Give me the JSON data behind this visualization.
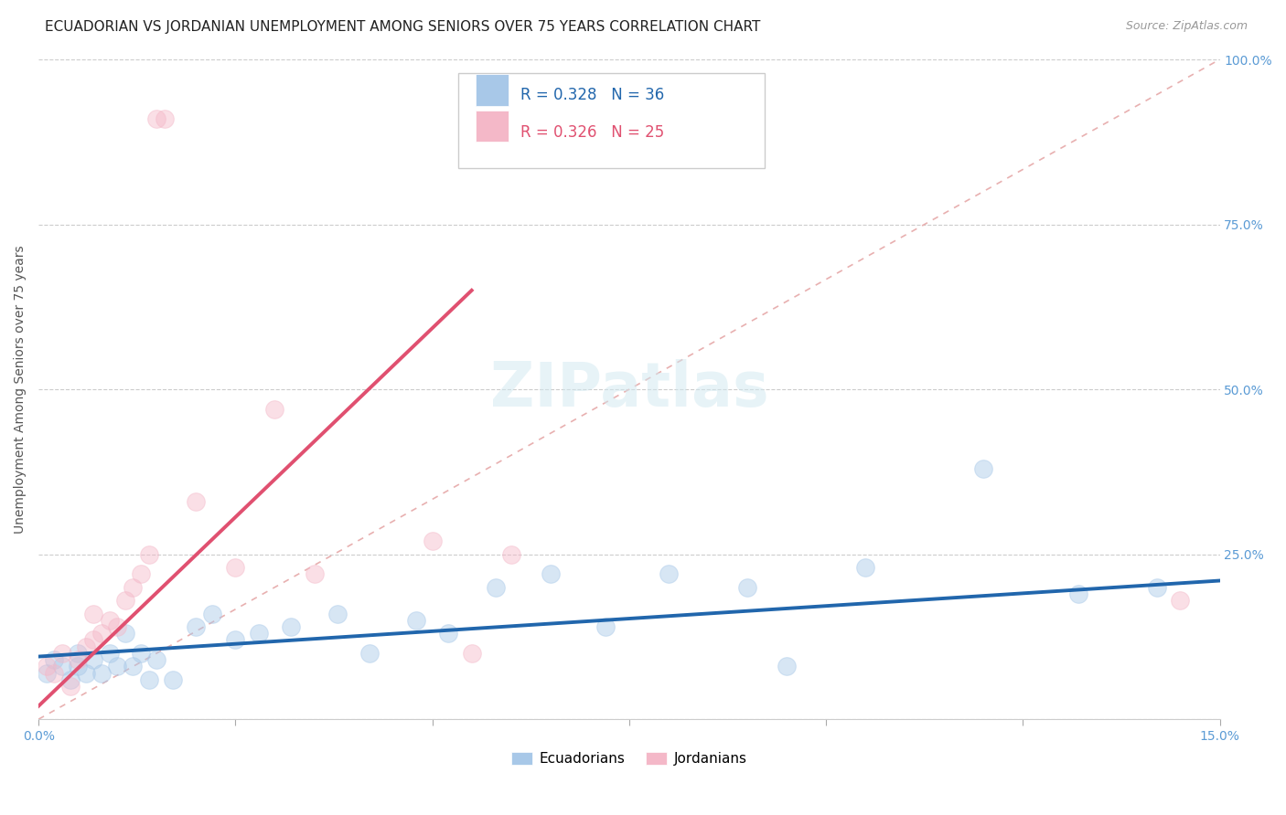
{
  "title": "ECUADORIAN VS JORDANIAN UNEMPLOYMENT AMONG SENIORS OVER 75 YEARS CORRELATION CHART",
  "source": "Source: ZipAtlas.com",
  "ylabel_label": "Unemployment Among Seniors over 75 years",
  "xmin": 0.0,
  "xmax": 15.0,
  "ymin": 0.0,
  "ymax": 100.0,
  "blue_color": "#a8c8e8",
  "pink_color": "#f4b8c8",
  "blue_line_color": "#2166ac",
  "pink_line_color": "#e05070",
  "diag_color": "#d0a0a0",
  "legend_blue_R": "R = 0.328",
  "legend_blue_N": "N = 36",
  "legend_pink_R": "R = 0.326",
  "legend_pink_N": "N = 25",
  "blue_label": "Ecuadorians",
  "pink_label": "Jordanians",
  "blue_scatter_x": [
    0.1,
    0.2,
    0.3,
    0.4,
    0.5,
    0.5,
    0.6,
    0.7,
    0.8,
    0.9,
    1.0,
    1.1,
    1.2,
    1.3,
    1.4,
    1.5,
    1.7,
    2.0,
    2.2,
    2.5,
    2.8,
    3.2,
    3.8,
    4.2,
    4.8,
    5.2,
    5.8,
    6.5,
    7.2,
    8.0,
    9.0,
    9.5,
    10.5,
    12.0,
    13.2,
    14.2
  ],
  "blue_scatter_y": [
    7,
    9,
    8,
    6,
    10,
    8,
    7,
    9,
    7,
    10,
    8,
    13,
    8,
    10,
    6,
    9,
    6,
    14,
    16,
    12,
    13,
    14,
    16,
    10,
    15,
    13,
    20,
    22,
    14,
    22,
    20,
    8,
    23,
    38,
    19,
    20
  ],
  "pink_scatter_x": [
    0.1,
    0.2,
    0.3,
    0.4,
    0.5,
    0.6,
    0.7,
    0.7,
    0.8,
    0.9,
    1.0,
    1.1,
    1.2,
    1.3,
    1.4,
    1.5,
    1.6,
    2.0,
    2.5,
    3.0,
    3.5,
    5.0,
    5.5,
    6.0,
    14.5
  ],
  "pink_scatter_y": [
    8,
    7,
    10,
    5,
    9,
    11,
    12,
    16,
    13,
    15,
    14,
    18,
    20,
    22,
    25,
    91,
    91,
    33,
    23,
    47,
    22,
    27,
    10,
    25,
    18
  ],
  "blue_line_x0": 0.0,
  "blue_line_y0": 9.5,
  "blue_line_x1": 15.0,
  "blue_line_y1": 21.0,
  "pink_line_x0": 0.0,
  "pink_line_y0": 2.0,
  "pink_line_x1": 5.5,
  "pink_line_y1": 65.0,
  "tick_color": "#5b9bd5",
  "grid_color": "#cccccc",
  "title_fontsize": 11,
  "axis_tick_fontsize": 10,
  "ylabel_fontsize": 10,
  "legend_fontsize": 12,
  "scatter_size": 200,
  "scatter_alpha": 0.45,
  "scatter_linewidth": 0.8
}
